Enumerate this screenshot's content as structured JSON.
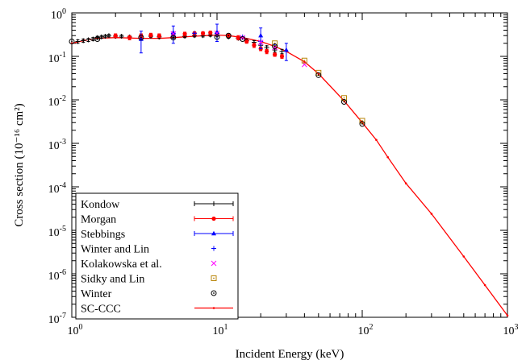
{
  "chart_data": {
    "type": "scatter",
    "xlabel": "Incident Energy (keV)",
    "ylabel": "Cross section (10⁻¹⁶ cm²)",
    "xscale": "log",
    "yscale": "log",
    "xlim": [
      1,
      1000
    ],
    "ylim": [
      1e-07,
      1
    ],
    "x_ticks": [
      {
        "value": 1,
        "base": "10",
        "exp": "0"
      },
      {
        "value": 10,
        "base": "10",
        "exp": "1"
      },
      {
        "value": 100,
        "base": "10",
        "exp": "2"
      },
      {
        "value": 1000,
        "base": "10",
        "exp": "3"
      }
    ],
    "y_ticks": [
      {
        "value": 1,
        "base": "10",
        "exp": "0"
      },
      {
        "value": 0.1,
        "base": "10",
        "exp": "-1"
      },
      {
        "value": 0.01,
        "base": "10",
        "exp": "-2"
      },
      {
        "value": 0.001,
        "base": "10",
        "exp": "-3"
      },
      {
        "value": 0.0001,
        "base": "10",
        "exp": "-4"
      },
      {
        "value": 1e-05,
        "base": "10",
        "exp": "-5"
      },
      {
        "value": 1e-06,
        "base": "10",
        "exp": "-6"
      },
      {
        "value": 1e-07,
        "base": "10",
        "exp": "-7"
      }
    ],
    "grid": false,
    "legend_position": "bottom-left",
    "series": [
      {
        "name": "Kondow",
        "marker": "plus-errorbar",
        "color": "#000000",
        "points": [
          {
            "x": 1.1,
            "y": 0.22,
            "ylo": 0.2,
            "yhi": 0.24
          },
          {
            "x": 1.2,
            "y": 0.23,
            "ylo": 0.21,
            "yhi": 0.25
          },
          {
            "x": 1.3,
            "y": 0.24,
            "ylo": 0.22,
            "yhi": 0.26
          },
          {
            "x": 1.4,
            "y": 0.25,
            "ylo": 0.23,
            "yhi": 0.27
          },
          {
            "x": 1.5,
            "y": 0.27,
            "ylo": 0.25,
            "yhi": 0.29
          },
          {
            "x": 1.6,
            "y": 0.28,
            "ylo": 0.26,
            "yhi": 0.3
          },
          {
            "x": 1.7,
            "y": 0.29,
            "ylo": 0.27,
            "yhi": 0.31
          },
          {
            "x": 1.8,
            "y": 0.3,
            "ylo": 0.28,
            "yhi": 0.32
          },
          {
            "x": 2.0,
            "y": 0.29,
            "ylo": 0.27,
            "yhi": 0.31
          },
          {
            "x": 2.2,
            "y": 0.29,
            "ylo": 0.27,
            "yhi": 0.31
          },
          {
            "x": 2.5,
            "y": 0.28,
            "ylo": 0.26,
            "yhi": 0.3
          },
          {
            "x": 3.0,
            "y": 0.29,
            "ylo": 0.27,
            "yhi": 0.31
          },
          {
            "x": 3.5,
            "y": 0.29,
            "ylo": 0.27,
            "yhi": 0.31
          },
          {
            "x": 4.0,
            "y": 0.28,
            "ylo": 0.26,
            "yhi": 0.3
          },
          {
            "x": 5.0,
            "y": 0.28,
            "ylo": 0.26,
            "yhi": 0.3
          },
          {
            "x": 6.0,
            "y": 0.29,
            "ylo": 0.27,
            "yhi": 0.31
          },
          {
            "x": 7.0,
            "y": 0.3,
            "ylo": 0.28,
            "yhi": 0.32
          },
          {
            "x": 8.0,
            "y": 0.3,
            "ylo": 0.28,
            "yhi": 0.32
          },
          {
            "x": 9.0,
            "y": 0.31,
            "ylo": 0.29,
            "yhi": 0.33
          },
          {
            "x": 10.0,
            "y": 0.31,
            "ylo": 0.29,
            "yhi": 0.33
          },
          {
            "x": 12.0,
            "y": 0.28,
            "ylo": 0.26,
            "yhi": 0.3
          },
          {
            "x": 14.0,
            "y": 0.26,
            "ylo": 0.24,
            "yhi": 0.28
          },
          {
            "x": 16.0,
            "y": 0.23,
            "ylo": 0.21,
            "yhi": 0.25
          },
          {
            "x": 18.0,
            "y": 0.21,
            "ylo": 0.19,
            "yhi": 0.23
          },
          {
            "x": 20.0,
            "y": 0.18,
            "ylo": 0.16,
            "yhi": 0.2
          },
          {
            "x": 22.0,
            "y": 0.16,
            "ylo": 0.145,
            "yhi": 0.175
          },
          {
            "x": 25.0,
            "y": 0.14,
            "ylo": 0.125,
            "yhi": 0.155
          },
          {
            "x": 28.0,
            "y": 0.13,
            "ylo": 0.115,
            "yhi": 0.145
          }
        ]
      },
      {
        "name": "Morgan",
        "marker": "circle-errorbar",
        "color": "#ff0000",
        "points": [
          {
            "x": 2.0,
            "y": 0.3,
            "ylo": 0.27,
            "yhi": 0.33
          },
          {
            "x": 2.5,
            "y": 0.27,
            "ylo": 0.24,
            "yhi": 0.3
          },
          {
            "x": 3.0,
            "y": 0.3,
            "ylo": 0.27,
            "yhi": 0.33
          },
          {
            "x": 3.5,
            "y": 0.31,
            "ylo": 0.28,
            "yhi": 0.34
          },
          {
            "x": 4.0,
            "y": 0.3,
            "ylo": 0.27,
            "yhi": 0.33
          },
          {
            "x": 5.0,
            "y": 0.33,
            "ylo": 0.3,
            "yhi": 0.36
          },
          {
            "x": 6.0,
            "y": 0.33,
            "ylo": 0.3,
            "yhi": 0.36
          },
          {
            "x": 7.0,
            "y": 0.34,
            "ylo": 0.31,
            "yhi": 0.37
          },
          {
            "x": 8.0,
            "y": 0.34,
            "ylo": 0.31,
            "yhi": 0.37
          },
          {
            "x": 9.0,
            "y": 0.35,
            "ylo": 0.32,
            "yhi": 0.38
          },
          {
            "x": 10.0,
            "y": 0.34,
            "ylo": 0.31,
            "yhi": 0.37
          },
          {
            "x": 12.0,
            "y": 0.3,
            "ylo": 0.27,
            "yhi": 0.33
          },
          {
            "x": 14.0,
            "y": 0.27,
            "ylo": 0.24,
            "yhi": 0.3
          },
          {
            "x": 16.0,
            "y": 0.22,
            "ylo": 0.2,
            "yhi": 0.24
          },
          {
            "x": 18.0,
            "y": 0.18,
            "ylo": 0.16,
            "yhi": 0.2
          },
          {
            "x": 20.0,
            "y": 0.15,
            "ylo": 0.135,
            "yhi": 0.165
          },
          {
            "x": 22.0,
            "y": 0.13,
            "ylo": 0.115,
            "yhi": 0.145
          },
          {
            "x": 25.0,
            "y": 0.11,
            "ylo": 0.1,
            "yhi": 0.12
          },
          {
            "x": 28.0,
            "y": 0.1,
            "ylo": 0.09,
            "yhi": 0.11
          }
        ]
      },
      {
        "name": "Stebbings",
        "marker": "triangle-errorbar",
        "color": "#0000ff",
        "points": [
          {
            "x": 3.0,
            "y": 0.25,
            "ylo": 0.12,
            "yhi": 0.38
          },
          {
            "x": 5.0,
            "y": 0.35,
            "ylo": 0.2,
            "yhi": 0.5
          },
          {
            "x": 10.0,
            "y": 0.36,
            "ylo": 0.22,
            "yhi": 0.55
          },
          {
            "x": 20.0,
            "y": 0.3,
            "ylo": 0.15,
            "yhi": 0.45
          },
          {
            "x": 30.0,
            "y": 0.14,
            "ylo": 0.08,
            "yhi": 0.2
          }
        ]
      },
      {
        "name": "Winter and Lin",
        "marker": "plus",
        "color": "#0000ff",
        "points": [
          {
            "x": 5.0,
            "y": 0.34
          },
          {
            "x": 7.0,
            "y": 0.34
          },
          {
            "x": 10.0,
            "y": 0.34
          },
          {
            "x": 15.0,
            "y": 0.28
          },
          {
            "x": 20.0,
            "y": 0.22
          },
          {
            "x": 25.0,
            "y": 0.18
          }
        ]
      },
      {
        "name": "Kolakowska et al.",
        "marker": "cross",
        "color": "#ff00ff",
        "points": [
          {
            "x": 5.0,
            "y": 0.33
          },
          {
            "x": 10.0,
            "y": 0.34
          },
          {
            "x": 15.0,
            "y": 0.27
          },
          {
            "x": 20.0,
            "y": 0.21
          },
          {
            "x": 25.0,
            "y": 0.16
          },
          {
            "x": 40.0,
            "y": 0.065
          }
        ]
      },
      {
        "name": "Sidky and Lin",
        "marker": "square",
        "color": "#b8860b",
        "points": [
          {
            "x": 25.0,
            "y": 0.2
          },
          {
            "x": 40.0,
            "y": 0.08
          },
          {
            "x": 50.0,
            "y": 0.042
          },
          {
            "x": 75.0,
            "y": 0.011
          },
          {
            "x": 100.0,
            "y": 0.0033
          }
        ]
      },
      {
        "name": "Winter",
        "marker": "circle-dot",
        "color": "#000000",
        "points": [
          {
            "x": 1.0,
            "y": 0.22
          },
          {
            "x": 1.5,
            "y": 0.25
          },
          {
            "x": 3.0,
            "y": 0.27
          },
          {
            "x": 5.0,
            "y": 0.27
          },
          {
            "x": 10.0,
            "y": 0.28
          },
          {
            "x": 12.0,
            "y": 0.3
          },
          {
            "x": 15.0,
            "y": 0.25
          },
          {
            "x": 25.0,
            "y": 0.17
          },
          {
            "x": 50.0,
            "y": 0.037
          },
          {
            "x": 75.0,
            "y": 0.009
          },
          {
            "x": 100.0,
            "y": 0.0028
          }
        ]
      },
      {
        "name": "SC-CCC",
        "marker": "line-dot",
        "color": "#ff0000",
        "points": [
          {
            "x": 1.0,
            "y": 0.2
          },
          {
            "x": 1.2,
            "y": 0.23
          },
          {
            "x": 1.5,
            "y": 0.26
          },
          {
            "x": 2.0,
            "y": 0.27
          },
          {
            "x": 3.0,
            "y": 0.26
          },
          {
            "x": 4.0,
            "y": 0.26
          },
          {
            "x": 5.0,
            "y": 0.27
          },
          {
            "x": 7.0,
            "y": 0.29
          },
          {
            "x": 10.0,
            "y": 0.31
          },
          {
            "x": 12.0,
            "y": 0.3
          },
          {
            "x": 15.0,
            "y": 0.27
          },
          {
            "x": 20.0,
            "y": 0.22
          },
          {
            "x": 25.0,
            "y": 0.17
          },
          {
            "x": 30.0,
            "y": 0.13
          },
          {
            "x": 40.0,
            "y": 0.075
          },
          {
            "x": 50.0,
            "y": 0.04
          },
          {
            "x": 75.0,
            "y": 0.0095
          },
          {
            "x": 100.0,
            "y": 0.003
          },
          {
            "x": 125.0,
            "y": 0.0012
          },
          {
            "x": 150.0,
            "y": 0.00048
          },
          {
            "x": 200.0,
            "y": 0.00012
          },
          {
            "x": 300.0,
            "y": 2.4e-05
          },
          {
            "x": 500.0,
            "y": 2.5e-06
          },
          {
            "x": 700.0,
            "y": 5.5e-07
          },
          {
            "x": 1000.0,
            "y": 1.1e-07
          }
        ]
      }
    ]
  }
}
